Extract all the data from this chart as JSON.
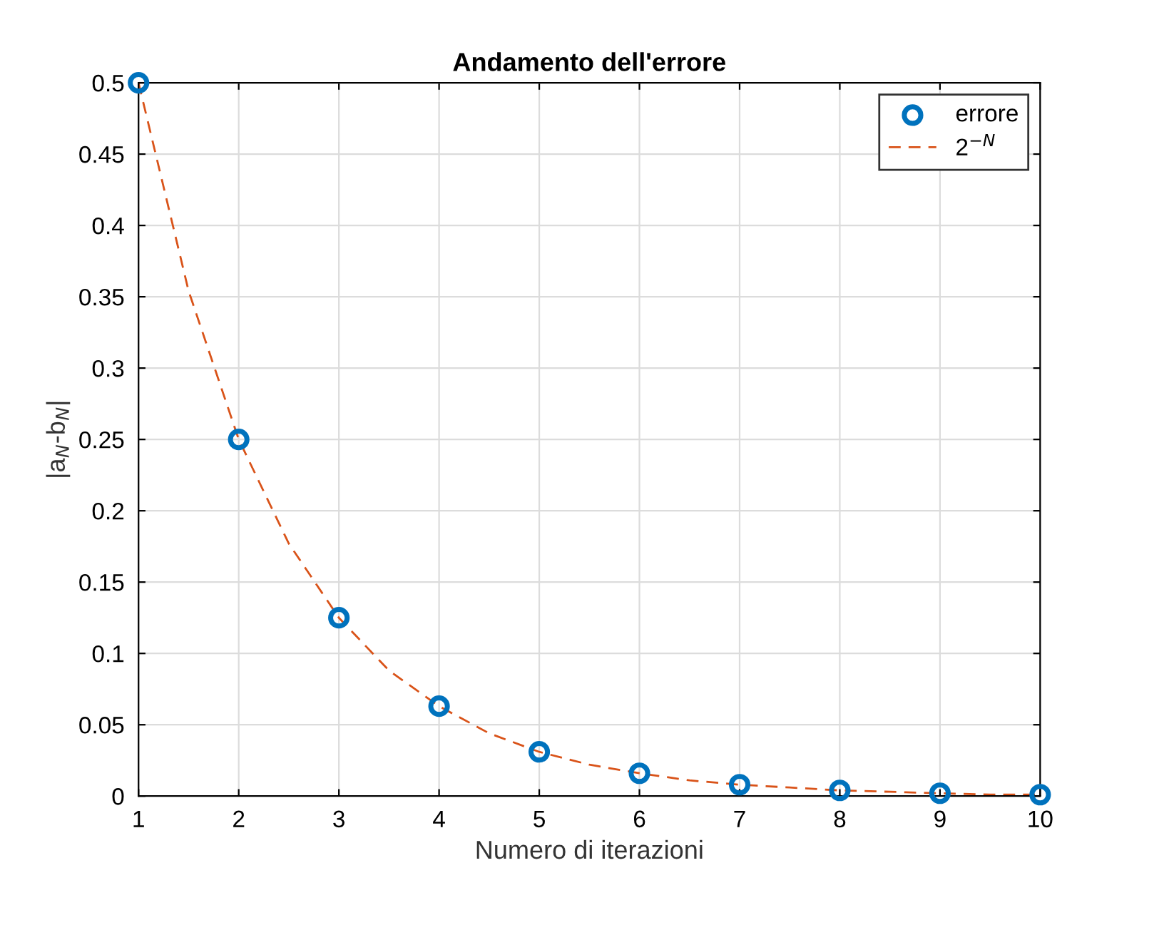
{
  "chart_data": {
    "type": "scatter",
    "title": "Andamento dell'errore",
    "xlabel": "Numero di iterazioni",
    "ylabel": "|a$_{N}$-b$_{N}$|",
    "xlim": [
      1,
      10
    ],
    "xticks": [
      1,
      2,
      3,
      4,
      5,
      6,
      7,
      8,
      9,
      10
    ],
    "ylim": [
      0,
      0.5
    ],
    "yticks": [
      0,
      0.05,
      0.1,
      0.15,
      0.2,
      0.25,
      0.3,
      0.35,
      0.4,
      0.45,
      0.5
    ],
    "grid": true,
    "legend": "top right",
    "series": [
      {
        "name": "errore",
        "marker": "circle",
        "color": "#0072bd",
        "x": [
          1,
          2,
          3,
          4,
          5,
          6,
          7,
          8,
          9,
          10
        ],
        "values": [
          0.5,
          0.25,
          0.125,
          0.063,
          0.031,
          0.016,
          0.008,
          0.004,
          0.002,
          0.001
        ]
      },
      {
        "name": "2$^{−N}$",
        "type": "line",
        "line_style": "dashed",
        "color": "#d95319",
        "x": [
          1,
          1.5,
          2,
          2.5,
          3,
          3.5,
          4,
          4.5,
          5,
          5.5,
          6,
          6.5,
          7,
          7.5,
          8,
          8.5,
          9,
          9.5,
          10
        ],
        "values": [
          0.5,
          0.354,
          0.25,
          0.177,
          0.125,
          0.088,
          0.063,
          0.044,
          0.031,
          0.022,
          0.016,
          0.011,
          0.008,
          0.006,
          0.004,
          0.003,
          0.002,
          0.001,
          0.001
        ]
      }
    ]
  }
}
